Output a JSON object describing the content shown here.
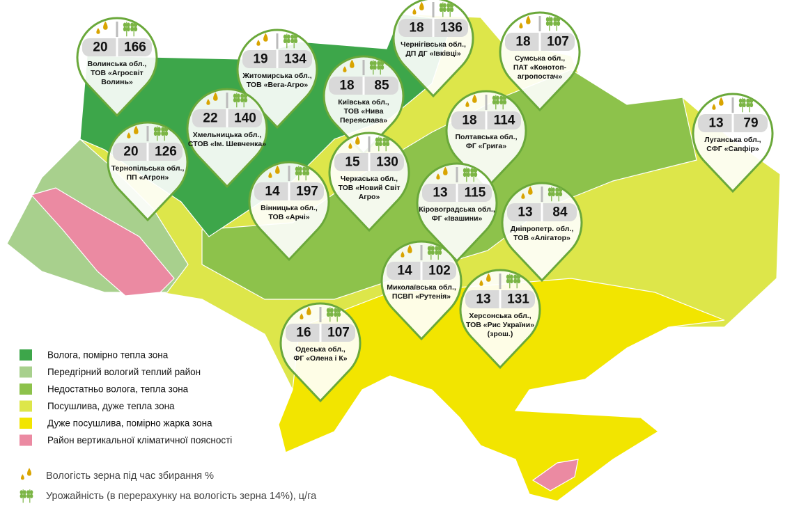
{
  "legend": {
    "zones": [
      {
        "label": "Волога, помірно тепла зона",
        "color": "#3da64a"
      },
      {
        "label": "Передгірний вологий теплий район",
        "color": "#a8d08d"
      },
      {
        "label": "Недостатньо волога, тепла зона",
        "color": "#8dc24b"
      },
      {
        "label": "Посушлива, дуже тепла зона",
        "color": "#dde64a"
      },
      {
        "label": "Дуже посушлива, помірно жарка зона",
        "color": "#f2e500"
      },
      {
        "label": "Район вертикальної кліматичної поясності",
        "color": "#eb8aa2"
      }
    ],
    "icons": {
      "moisture": "Вологість зерна під час збирання %",
      "yield": "Урожайність (в перерахунку на вологість зерна 14%), ц/га"
    }
  },
  "markers": [
    {
      "moisture": 20,
      "yield": 166,
      "label": [
        "Волинська обл.,",
        "ТОВ «Агросвіт",
        "Волинь»"
      ]
    },
    {
      "moisture": 19,
      "yield": 134,
      "label": [
        "Житомирська обл.,",
        "ТОВ «Вега-Агро»"
      ]
    },
    {
      "moisture": 18,
      "yield": 85,
      "label": [
        "Київська обл.,",
        "ТОВ «Нива",
        "Переяслава»"
      ]
    },
    {
      "moisture": 18,
      "yield": 136,
      "label": [
        "Чернігівська обл.,",
        "ДП ДГ «Івківці»"
      ]
    },
    {
      "moisture": 18,
      "yield": 107,
      "label": [
        "Сумська обл.,",
        "ПАТ «Конотоп-",
        "агропостач»"
      ]
    },
    {
      "moisture": 22,
      "yield": 140,
      "label": [
        "Хмельницька обл.,",
        "СТОВ «Ім. Шевченка»"
      ]
    },
    {
      "moisture": 20,
      "yield": 126,
      "label": [
        "Тернопільська обл.,",
        "ПП «Агрон»"
      ]
    },
    {
      "moisture": 18,
      "yield": 114,
      "label": [
        "Полтавська обл.,",
        "ФГ «Грига»"
      ]
    },
    {
      "moisture": 15,
      "yield": 130,
      "label": [
        "Черкаська обл.,",
        "ТОВ «Новий Світ",
        "Агро»"
      ]
    },
    {
      "moisture": 14,
      "yield": 197,
      "label": [
        "Вінницька обл.,",
        "ТОВ «Арчі»"
      ]
    },
    {
      "moisture": 13,
      "yield": 79,
      "label": [
        "Луганська обл.,",
        "СФГ «Сапфір»"
      ]
    },
    {
      "moisture": 13,
      "yield": 115,
      "label": [
        "Кіровоградська обл.,",
        "ФГ «Івашини»"
      ]
    },
    {
      "moisture": 13,
      "yield": 84,
      "label": [
        "Дніпропетр. обл.,",
        "ТОВ «Алігатор»"
      ]
    },
    {
      "moisture": 14,
      "yield": 102,
      "label": [
        "Миколаївська обл.,",
        "ПСВП «Рутенія»"
      ]
    },
    {
      "moisture": 13,
      "yield": 131,
      "label": [
        "Херсонська обл.,",
        "ТОВ «Рис України»",
        "(зрош.)"
      ]
    },
    {
      "moisture": 16,
      "yield": 107,
      "label": [
        "Одеська обл.,",
        "ФГ «Олена і К»"
      ]
    }
  ]
}
